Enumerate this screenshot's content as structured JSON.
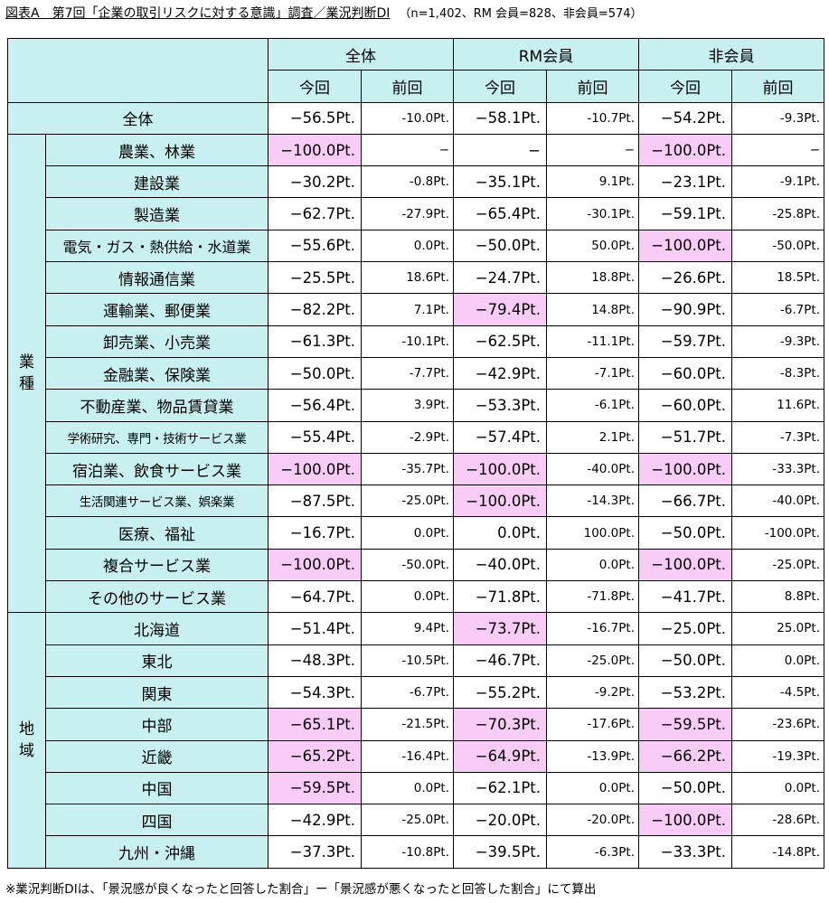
{
  "title": {
    "main": "図表A　第7回「企業の取引リスクに対する意識」調査／業況判断DI",
    "sub": "（n=1,402、RM 会員=828、非会員=574）"
  },
  "headers": {
    "groups": [
      "全体",
      "RM会員",
      "非会員"
    ],
    "current": "今回",
    "previous": "前回"
  },
  "total": {
    "label": "全体",
    "values": [
      "−56.5Pt.",
      "-10.0Pt.",
      "−58.1Pt.",
      "-10.7Pt.",
      "−54.2Pt.",
      "-9.3Pt."
    ],
    "highlight": [
      false,
      false,
      false,
      false,
      false,
      false
    ]
  },
  "sections": [
    {
      "label": "業種",
      "rows": [
        {
          "label": "農業、林業",
          "values": [
            "−100.0Pt.",
            "−",
            "−",
            "−",
            "−100.0Pt.",
            "−"
          ],
          "highlight": [
            true,
            false,
            false,
            false,
            true,
            false
          ]
        },
        {
          "label": "建設業",
          "values": [
            "−30.2Pt.",
            "-0.8Pt.",
            "−35.1Pt.",
            "9.1Pt.",
            "−23.1Pt.",
            "-9.1Pt."
          ],
          "highlight": [
            false,
            false,
            false,
            false,
            false,
            false
          ]
        },
        {
          "label": "製造業",
          "values": [
            "−62.7Pt.",
            "-27.9Pt.",
            "−65.4Pt.",
            "-30.1Pt.",
            "−59.1Pt.",
            "-25.8Pt."
          ],
          "highlight": [
            false,
            false,
            false,
            false,
            false,
            false
          ]
        },
        {
          "label": "電気・ガス・熱供給・水道業",
          "size": "mid",
          "values": [
            "−55.6Pt.",
            "0.0Pt.",
            "−50.0Pt.",
            "50.0Pt.",
            "−100.0Pt.",
            "-50.0Pt."
          ],
          "highlight": [
            false,
            false,
            false,
            false,
            true,
            false
          ]
        },
        {
          "label": "情報通信業",
          "values": [
            "−25.5Pt.",
            "18.6Pt.",
            "−24.7Pt.",
            "18.8Pt.",
            "−26.6Pt.",
            "18.5Pt."
          ],
          "highlight": [
            false,
            false,
            false,
            false,
            false,
            false
          ]
        },
        {
          "label": "運輸業、郵便業",
          "values": [
            "−82.2Pt.",
            "7.1Pt.",
            "−79.4Pt.",
            "14.8Pt.",
            "−90.9Pt.",
            "-6.7Pt."
          ],
          "highlight": [
            false,
            false,
            true,
            false,
            false,
            false
          ]
        },
        {
          "label": "卸売業、小売業",
          "values": [
            "−61.3Pt.",
            "-10.1Pt.",
            "−62.5Pt.",
            "-11.1Pt.",
            "−59.7Pt.",
            "-9.3Pt."
          ],
          "highlight": [
            false,
            false,
            false,
            false,
            false,
            false
          ]
        },
        {
          "label": "金融業、保険業",
          "values": [
            "−50.0Pt.",
            "-7.7Pt.",
            "−42.9Pt.",
            "-7.1Pt.",
            "−60.0Pt.",
            "-8.3Pt."
          ],
          "highlight": [
            false,
            false,
            false,
            false,
            false,
            false
          ]
        },
        {
          "label": "不動産業、物品賃貸業",
          "values": [
            "−56.4Pt.",
            "3.9Pt.",
            "−53.3Pt.",
            "-6.1Pt.",
            "−60.0Pt.",
            "11.6Pt."
          ],
          "highlight": [
            false,
            false,
            false,
            false,
            false,
            false
          ]
        },
        {
          "label": "学術研究、専門・技術サービス業",
          "size": "small",
          "values": [
            "−55.4Pt.",
            "-2.9Pt.",
            "−57.4Pt.",
            "2.1Pt.",
            "−51.7Pt.",
            "-7.3Pt."
          ],
          "highlight": [
            false,
            false,
            false,
            false,
            false,
            false
          ]
        },
        {
          "label": "宿泊業、飲食サービス業",
          "values": [
            "−100.0Pt.",
            "-35.7Pt.",
            "−100.0Pt.",
            "-40.0Pt.",
            "−100.0Pt.",
            "-33.3Pt."
          ],
          "highlight": [
            true,
            false,
            true,
            false,
            true,
            false
          ]
        },
        {
          "label": "生活関連サービス業、娯楽業",
          "size": "small",
          "values": [
            "−87.5Pt.",
            "-25.0Pt.",
            "−100.0Pt.",
            "-14.3Pt.",
            "−66.7Pt.",
            "-40.0Pt."
          ],
          "highlight": [
            false,
            false,
            true,
            false,
            false,
            false
          ]
        },
        {
          "label": "医療、福祉",
          "values": [
            "−16.7Pt.",
            "0.0Pt.",
            "0.0Pt.",
            "100.0Pt.",
            "−50.0Pt.",
            "-100.0Pt."
          ],
          "highlight": [
            false,
            false,
            false,
            false,
            false,
            false
          ]
        },
        {
          "label": "複合サービス業",
          "values": [
            "−100.0Pt.",
            "-50.0Pt.",
            "−40.0Pt.",
            "0.0Pt.",
            "−100.0Pt.",
            "-25.0Pt."
          ],
          "highlight": [
            true,
            false,
            false,
            false,
            true,
            false
          ]
        },
        {
          "label": "その他のサービス業",
          "values": [
            "−64.7Pt.",
            "0.0Pt.",
            "−71.8Pt.",
            "-71.8Pt.",
            "−41.7Pt.",
            "8.8Pt."
          ],
          "highlight": [
            false,
            false,
            false,
            false,
            false,
            false
          ]
        }
      ]
    },
    {
      "label": "地域",
      "rows": [
        {
          "label": "北海道",
          "values": [
            "−51.4Pt.",
            "9.4Pt.",
            "−73.7Pt.",
            "-16.7Pt.",
            "−25.0Pt.",
            "25.0Pt."
          ],
          "highlight": [
            false,
            false,
            true,
            false,
            false,
            false
          ]
        },
        {
          "label": "東北",
          "values": [
            "−48.3Pt.",
            "-10.5Pt.",
            "−46.7Pt.",
            "-25.0Pt.",
            "−50.0Pt.",
            "0.0Pt."
          ],
          "highlight": [
            false,
            false,
            false,
            false,
            false,
            false
          ]
        },
        {
          "label": "関東",
          "values": [
            "−54.3Pt.",
            "-6.7Pt.",
            "−55.2Pt.",
            "-9.2Pt.",
            "−53.2Pt.",
            "-4.5Pt."
          ],
          "highlight": [
            false,
            false,
            false,
            false,
            false,
            false
          ]
        },
        {
          "label": "中部",
          "values": [
            "−65.1Pt.",
            "-21.5Pt.",
            "−70.3Pt.",
            "-17.6Pt.",
            "−59.5Pt.",
            "-23.6Pt."
          ],
          "highlight": [
            true,
            false,
            true,
            false,
            true,
            false
          ]
        },
        {
          "label": "近畿",
          "values": [
            "−65.2Pt.",
            "-16.4Pt.",
            "−64.9Pt.",
            "-13.9Pt.",
            "−66.2Pt.",
            "-19.3Pt."
          ],
          "highlight": [
            true,
            false,
            true,
            false,
            true,
            false
          ]
        },
        {
          "label": "中国",
          "values": [
            "−59.5Pt.",
            "0.0Pt.",
            "−62.1Pt.",
            "0.0Pt.",
            "−50.0Pt.",
            "0.0Pt."
          ],
          "highlight": [
            true,
            false,
            false,
            false,
            false,
            false
          ]
        },
        {
          "label": "四国",
          "values": [
            "−42.9Pt.",
            "-25.0Pt.",
            "−20.0Pt.",
            "-20.0Pt.",
            "−100.0Pt.",
            "-28.6Pt."
          ],
          "highlight": [
            false,
            false,
            false,
            false,
            true,
            false
          ]
        },
        {
          "label": "九州・沖縄",
          "values": [
            "−37.3Pt.",
            "-10.8Pt.",
            "−39.5Pt.",
            "-6.3Pt.",
            "−33.3Pt.",
            "-14.8Pt."
          ],
          "highlight": [
            false,
            false,
            false,
            false,
            false,
            false
          ]
        }
      ]
    }
  ],
  "footnote": "※業況判断DIは、「景況感が良くなったと回答した割合」ー「景況感が悪くなったと回答した割合」にて算出",
  "colors": {
    "header_bg": "#c8f0f0",
    "highlight_bg": "#f9ccf7"
  }
}
